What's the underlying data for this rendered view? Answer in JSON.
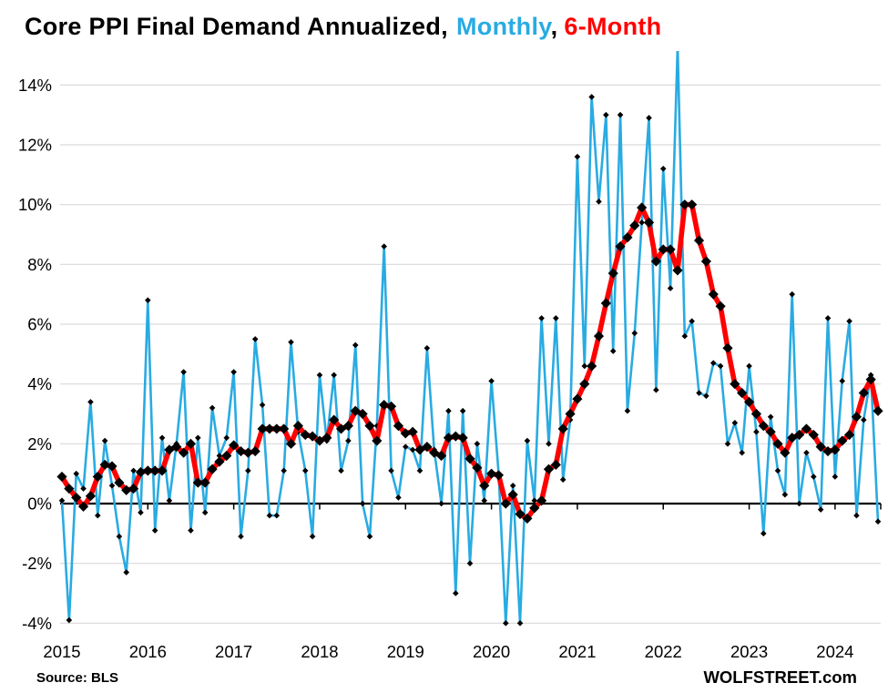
{
  "title": {
    "main": "Core PPI Final Demand Annualized,",
    "monthly": "Monthly",
    "separator": ",",
    "six_month": "6-Month"
  },
  "footer": {
    "source": "Source: BLS",
    "branding": "WOLFSTREET.com"
  },
  "colors": {
    "monthly_line": "#29ABE2",
    "six_month_line": "#FF0000",
    "marker": "#000000",
    "gridline": "#D9D9D9",
    "axis": "#000000",
    "background": "#FFFFFF"
  },
  "chart_data": {
    "type": "line",
    "title": "Core PPI Final Demand Annualized, Monthly, 6-Month",
    "x_unit": "month",
    "x_start": "2015-01",
    "x_end": "2024-07",
    "x_tick_labels": [
      "2015",
      "2016",
      "2017",
      "2018",
      "2019",
      "2020",
      "2021",
      "2022",
      "2023",
      "2024"
    ],
    "x_tick_month_index": [
      0,
      12,
      24,
      36,
      48,
      60,
      72,
      84,
      96,
      108
    ],
    "y_tick_values": [
      14,
      12,
      10,
      8,
      6,
      4,
      2,
      0,
      -2,
      -4
    ],
    "y_tick_labels": [
      "14%",
      "12%",
      "10%",
      "8%",
      "6%",
      "4%",
      "2%",
      "0%",
      "-2%",
      "-4%"
    ],
    "ylim": [
      -4.7,
      15.1
    ],
    "grid": "horizontal",
    "legend": "in-title",
    "series": [
      {
        "name": "Monthly",
        "color": "#29ABE2",
        "values": [
          0.1,
          -3.9,
          1.0,
          0.5,
          3.4,
          -0.4,
          2.1,
          0.6,
          -1.1,
          -2.3,
          1.1,
          -0.3,
          6.8,
          -0.9,
          2.2,
          0.1,
          2.0,
          4.4,
          -0.9,
          2.2,
          -0.3,
          3.2,
          1.6,
          2.2,
          4.4,
          -1.1,
          1.1,
          5.5,
          3.3,
          -0.4,
          -0.4,
          1.1,
          5.4,
          2.4,
          1.1,
          -1.1,
          4.3,
          2.1,
          4.3,
          1.1,
          2.1,
          5.3,
          0.0,
          -1.1,
          2.6,
          8.6,
          1.1,
          0.2,
          1.9,
          1.8,
          1.1,
          5.2,
          1.8,
          0.0,
          3.1,
          -3.0,
          3.1,
          -2.0,
          2.0,
          0.1,
          4.1,
          1.0,
          -4.0,
          0.6,
          -4.0,
          2.1,
          0.1,
          6.2,
          2.0,
          6.2,
          0.8,
          2.8,
          11.6,
          4.6,
          13.6,
          10.1,
          13.0,
          5.1,
          13.0,
          3.1,
          5.7,
          9.4,
          12.9,
          3.8,
          11.2,
          7.2,
          15.3,
          5.6,
          6.1,
          3.7,
          3.6,
          4.7,
          4.6,
          2.0,
          2.7,
          1.7,
          4.6,
          2.4,
          -1.0,
          2.9,
          1.1,
          0.3,
          7.0,
          0.0,
          1.7,
          0.9,
          -0.2,
          6.2,
          0.9,
          4.1,
          6.1,
          -0.4,
          2.8,
          4.3,
          -0.6
        ]
      },
      {
        "name": "6-Month",
        "color": "#FF0000",
        "values": [
          0.9,
          0.5,
          0.2,
          -0.1,
          0.25,
          0.9,
          1.3,
          1.25,
          0.7,
          0.45,
          0.5,
          1.05,
          1.1,
          1.1,
          1.1,
          1.8,
          1.9,
          1.7,
          2.0,
          0.7,
          0.7,
          1.15,
          1.4,
          1.6,
          1.95,
          1.75,
          1.7,
          1.75,
          2.5,
          2.5,
          2.5,
          2.5,
          2.0,
          2.6,
          2.3,
          2.25,
          2.1,
          2.2,
          2.8,
          2.5,
          2.6,
          3.1,
          3.0,
          2.6,
          2.1,
          3.3,
          3.25,
          2.6,
          2.35,
          2.4,
          1.8,
          1.9,
          1.7,
          1.6,
          2.2,
          2.25,
          2.2,
          1.5,
          1.2,
          0.6,
          1.0,
          0.95,
          0.0,
          0.3,
          -0.35,
          -0.5,
          -0.15,
          0.1,
          1.15,
          1.3,
          2.5,
          3.0,
          3.5,
          4.0,
          4.6,
          5.6,
          6.7,
          7.7,
          8.6,
          8.9,
          9.3,
          9.9,
          9.4,
          8.1,
          8.5,
          8.5,
          7.8,
          10.0,
          10.0,
          8.8,
          8.1,
          7.0,
          6.6,
          5.2,
          4.0,
          3.7,
          3.4,
          3.0,
          2.6,
          2.4,
          2.0,
          1.7,
          2.2,
          2.3,
          2.5,
          2.3,
          1.9,
          1.75,
          1.8,
          2.1,
          2.3,
          2.9,
          3.7,
          4.15,
          3.1
        ]
      }
    ]
  }
}
